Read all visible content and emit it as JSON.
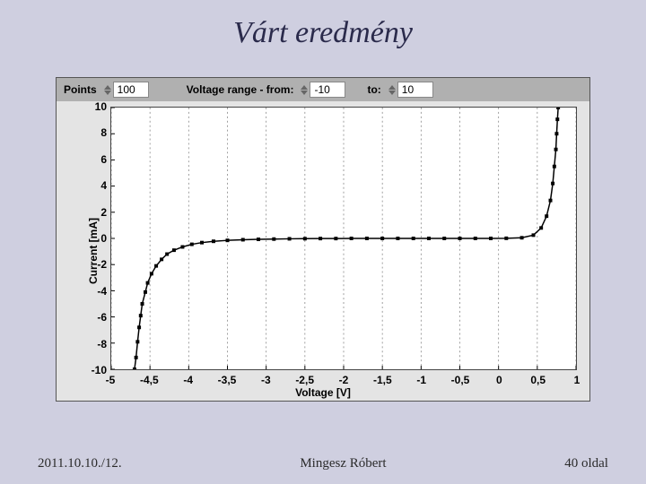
{
  "slide": {
    "title": "Várt eredmény",
    "footer_left": "2011.10.10./12.",
    "footer_center": "Mingesz Róbert",
    "footer_right": "40 oldal",
    "background_color": "#cfcfe0"
  },
  "controls": {
    "points_label": "Points",
    "points_value": "100",
    "range_label": "Voltage range  -  from:",
    "from_value": "-10",
    "to_label": "to:",
    "to_value": "10"
  },
  "chart": {
    "type": "scatter-line",
    "panel_bg": "#e4e4e4",
    "topbar_bg": "#b0b0b0",
    "plot_bg": "#ffffff",
    "border_color": "#444444",
    "grid_color": "#888888",
    "grid_dash": "2 3",
    "series_color": "#000000",
    "marker": "square",
    "marker_size": 4,
    "line_width": 1.5,
    "xlabel": "Voltage [V]",
    "ylabel": "Current [mA]",
    "tick_fontsize": 12,
    "tick_fontweight": 700,
    "xlim": [
      -5,
      1
    ],
    "xtick_step": 0.5,
    "xticks": [
      "-5",
      "-4,5",
      "-4",
      "-3,5",
      "-3",
      "-2,5",
      "-2",
      "-1,5",
      "-1",
      "-0,5",
      "0",
      "0,5",
      "1"
    ],
    "ylim": [
      -10,
      10
    ],
    "ytick_step": 2,
    "yticks": [
      "10",
      "8",
      "6",
      "4",
      "2",
      "0",
      "-2",
      "-4",
      "-6",
      "-8",
      "-10"
    ],
    "data": [
      {
        "x": -4.7,
        "y": -10.0
      },
      {
        "x": -4.68,
        "y": -9.1
      },
      {
        "x": -4.66,
        "y": -7.9
      },
      {
        "x": -4.64,
        "y": -6.8
      },
      {
        "x": -4.62,
        "y": -5.9
      },
      {
        "x": -4.6,
        "y": -5.0
      },
      {
        "x": -4.56,
        "y": -4.1
      },
      {
        "x": -4.53,
        "y": -3.4
      },
      {
        "x": -4.48,
        "y": -2.7
      },
      {
        "x": -4.42,
        "y": -2.1
      },
      {
        "x": -4.35,
        "y": -1.6
      },
      {
        "x": -4.28,
        "y": -1.2
      },
      {
        "x": -4.19,
        "y": -0.9
      },
      {
        "x": -4.08,
        "y": -0.65
      },
      {
        "x": -3.96,
        "y": -0.45
      },
      {
        "x": -3.83,
        "y": -0.32
      },
      {
        "x": -3.68,
        "y": -0.22
      },
      {
        "x": -3.5,
        "y": -0.15
      },
      {
        "x": -3.3,
        "y": -0.1
      },
      {
        "x": -3.1,
        "y": -0.07
      },
      {
        "x": -2.9,
        "y": -0.05
      },
      {
        "x": -2.7,
        "y": -0.03
      },
      {
        "x": -2.5,
        "y": -0.02
      },
      {
        "x": -2.3,
        "y": -0.01
      },
      {
        "x": -2.1,
        "y": -0.01
      },
      {
        "x": -1.9,
        "y": 0.0
      },
      {
        "x": -1.7,
        "y": 0.0
      },
      {
        "x": -1.5,
        "y": 0.0
      },
      {
        "x": -1.3,
        "y": 0.0
      },
      {
        "x": -1.1,
        "y": 0.0
      },
      {
        "x": -0.9,
        "y": 0.0
      },
      {
        "x": -0.7,
        "y": 0.0
      },
      {
        "x": -0.5,
        "y": 0.0
      },
      {
        "x": -0.3,
        "y": 0.0
      },
      {
        "x": -0.1,
        "y": 0.0
      },
      {
        "x": 0.1,
        "y": 0.01
      },
      {
        "x": 0.3,
        "y": 0.05
      },
      {
        "x": 0.45,
        "y": 0.25
      },
      {
        "x": 0.55,
        "y": 0.8
      },
      {
        "x": 0.62,
        "y": 1.7
      },
      {
        "x": 0.67,
        "y": 2.9
      },
      {
        "x": 0.7,
        "y": 4.2
      },
      {
        "x": 0.72,
        "y": 5.5
      },
      {
        "x": 0.74,
        "y": 6.8
      },
      {
        "x": 0.75,
        "y": 8.0
      },
      {
        "x": 0.76,
        "y": 9.1
      },
      {
        "x": 0.77,
        "y": 10.0
      }
    ]
  }
}
